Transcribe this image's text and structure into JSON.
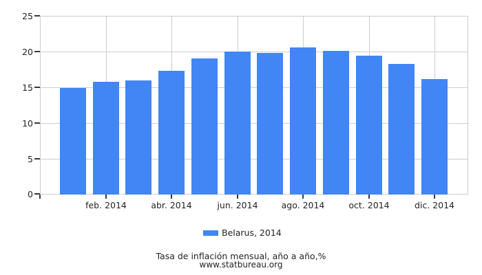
{
  "chart_data": {
    "type": "bar",
    "title": "Tasa de inflación mensual, año a año,%",
    "source": "www.statbureau.org",
    "series": [
      {
        "name": "Belarus, 2014",
        "color": "#4285F4",
        "values": [
          14.9,
          15.8,
          16.0,
          17.3,
          19.0,
          20.0,
          19.8,
          20.6,
          20.1,
          19.4,
          18.3,
          16.2
        ]
      }
    ],
    "x_tick_labels": [
      "feb. 2014",
      "abr. 2014",
      "jun. 2014",
      "ago. 2014",
      "oct. 2014",
      "dic. 2014"
    ],
    "x_tick_bar_positions": [
      2,
      4,
      6,
      8,
      10,
      12
    ],
    "y_ticks": [
      0,
      5,
      10,
      15,
      20,
      25
    ],
    "ylim": [
      0,
      25
    ],
    "grid": true,
    "legend_position": "bottom",
    "colors": {
      "bar": "#4285F4",
      "grid": "#cccccc",
      "tick_mark": "#383838",
      "text": "#222222"
    }
  }
}
